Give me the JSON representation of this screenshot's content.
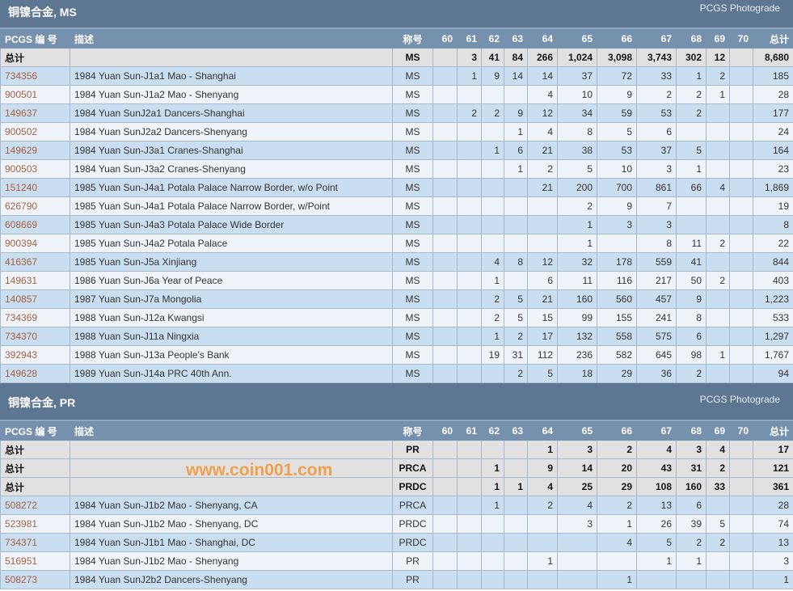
{
  "grades": [
    "60",
    "61",
    "62",
    "63",
    "64",
    "65",
    "66",
    "67",
    "68",
    "69",
    "70"
  ],
  "columns": {
    "pcgs": "PCGS 编 号",
    "desc": "描述",
    "designation": "称号",
    "total": "总计"
  },
  "sections": [
    {
      "title": "铜镍合金, MS",
      "brand": "PCGS Photograde",
      "totals": [
        {
          "label": "总计",
          "designation": "MS",
          "counts": [
            "",
            "3",
            "41",
            "84",
            "266",
            "1,024",
            "3,098",
            "3,743",
            "302",
            "12",
            ""
          ],
          "total": "8,680"
        }
      ],
      "rows": [
        {
          "id": "734356",
          "desc": "1984 Yuan Sun-J1a1 Mao - Shanghai",
          "designation": "MS",
          "counts": [
            "",
            "1",
            "9",
            "14",
            "14",
            "37",
            "72",
            "33",
            "1",
            "2",
            ""
          ],
          "total": "185"
        },
        {
          "id": "900501",
          "desc": "1984 Yuan Sun-J1a2 Mao - Shenyang",
          "designation": "MS",
          "counts": [
            "",
            "",
            "",
            "",
            "4",
            "10",
            "9",
            "2",
            "2",
            "1",
            ""
          ],
          "total": "28"
        },
        {
          "id": "149637",
          "desc": "1984 Yuan SunJ2a1 Dancers-Shanghai",
          "designation": "MS",
          "counts": [
            "",
            "2",
            "2",
            "9",
            "12",
            "34",
            "59",
            "53",
            "2",
            "",
            ""
          ],
          "total": "177"
        },
        {
          "id": "900502",
          "desc": "1984 Yuan SunJ2a2 Dancers-Shenyang",
          "designation": "MS",
          "counts": [
            "",
            "",
            "",
            "1",
            "4",
            "8",
            "5",
            "6",
            "",
            "",
            ""
          ],
          "total": "24"
        },
        {
          "id": "149629",
          "desc": "1984 Yuan Sun-J3a1 Cranes-Shanghai",
          "designation": "MS",
          "counts": [
            "",
            "",
            "1",
            "6",
            "21",
            "38",
            "53",
            "37",
            "5",
            "",
            ""
          ],
          "total": "164"
        },
        {
          "id": "900503",
          "desc": "1984 Yuan Sun-J3a2 Cranes-Shenyang",
          "designation": "MS",
          "counts": [
            "",
            "",
            "",
            "1",
            "2",
            "5",
            "10",
            "3",
            "1",
            "",
            ""
          ],
          "total": "23"
        },
        {
          "id": "151240",
          "desc": "1985 Yuan Sun-J4a1 Potala Palace Narrow Border, w/o Point",
          "designation": "MS",
          "counts": [
            "",
            "",
            "",
            "",
            "21",
            "200",
            "700",
            "861",
            "66",
            "4",
            ""
          ],
          "total": "1,869"
        },
        {
          "id": "626790",
          "desc": "1985 Yuan Sun-J4a1 Potala Palace Narrow Border, w/Point",
          "designation": "MS",
          "counts": [
            "",
            "",
            "",
            "",
            "",
            "2",
            "9",
            "7",
            "",
            "",
            ""
          ],
          "total": "19"
        },
        {
          "id": "608669",
          "desc": "1985 Yuan Sun-J4a3 Potala Palace Wide Border",
          "designation": "MS",
          "counts": [
            "",
            "",
            "",
            "",
            "",
            "1",
            "3",
            "3",
            "",
            "",
            ""
          ],
          "total": "8"
        },
        {
          "id": "900394",
          "desc": "1985 Yuan Sun-J4a2 Potala Palace",
          "designation": "MS",
          "counts": [
            "",
            "",
            "",
            "",
            "",
            "1",
            "",
            "8",
            "11",
            "2",
            ""
          ],
          "total": "22"
        },
        {
          "id": "416367",
          "desc": "1985 Yuan Sun-J5a Xinjiang",
          "designation": "MS",
          "counts": [
            "",
            "",
            "4",
            "8",
            "12",
            "32",
            "178",
            "559",
            "41",
            "",
            ""
          ],
          "total": "844"
        },
        {
          "id": "149631",
          "desc": "1986 Yuan Sun-J6a Year of Peace",
          "designation": "MS",
          "counts": [
            "",
            "",
            "1",
            "",
            "6",
            "11",
            "116",
            "217",
            "50",
            "2",
            ""
          ],
          "total": "403"
        },
        {
          "id": "140857",
          "desc": "1987 Yuan Sun-J7a Mongolia",
          "designation": "MS",
          "counts": [
            "",
            "",
            "2",
            "5",
            "21",
            "160",
            "560",
            "457",
            "9",
            "",
            ""
          ],
          "total": "1,223"
        },
        {
          "id": "734369",
          "desc": "1988 Yuan Sun-J12a Kwangsi",
          "designation": "MS",
          "counts": [
            "",
            "",
            "2",
            "5",
            "15",
            "99",
            "155",
            "241",
            "8",
            "",
            ""
          ],
          "total": "533"
        },
        {
          "id": "734370",
          "desc": "1988 Yuan Sun-J11a Ningxia",
          "designation": "MS",
          "counts": [
            "",
            "",
            "1",
            "2",
            "17",
            "132",
            "558",
            "575",
            "6",
            "",
            ""
          ],
          "total": "1,297"
        },
        {
          "id": "392943",
          "desc": "1988 Yuan Sun-J13a People's Bank",
          "designation": "MS",
          "counts": [
            "",
            "",
            "19",
            "31",
            "112",
            "236",
            "582",
            "645",
            "98",
            "1",
            ""
          ],
          "total": "1,767"
        },
        {
          "id": "149628",
          "desc": "1989 Yuan Sun-J14a PRC 40th Ann.",
          "designation": "MS",
          "counts": [
            "",
            "",
            "",
            "2",
            "5",
            "18",
            "29",
            "36",
            "2",
            "",
            ""
          ],
          "total": "94"
        }
      ]
    },
    {
      "title": "铜镍合金, PR",
      "brand": "PCGS Photograde",
      "totals": [
        {
          "label": "总计",
          "designation": "PR",
          "counts": [
            "",
            "",
            "",
            "",
            "1",
            "3",
            "2",
            "4",
            "3",
            "4",
            ""
          ],
          "total": "17"
        },
        {
          "label": "总计",
          "designation": "PRCA",
          "counts": [
            "",
            "",
            "1",
            "",
            "9",
            "14",
            "20",
            "43",
            "31",
            "2",
            ""
          ],
          "total": "121"
        },
        {
          "label": "总计",
          "designation": "PRDC",
          "counts": [
            "",
            "",
            "1",
            "1",
            "4",
            "25",
            "29",
            "108",
            "160",
            "33",
            ""
          ],
          "total": "361"
        }
      ],
      "rows": [
        {
          "id": "508272",
          "desc": "1984 Yuan Sun-J1b2 Mao - Shenyang, CA",
          "designation": "PRCA",
          "counts": [
            "",
            "",
            "1",
            "",
            "2",
            "4",
            "2",
            "13",
            "6",
            "",
            ""
          ],
          "total": "28"
        },
        {
          "id": "523981",
          "desc": "1984 Yuan Sun-J1b2 Mao - Shenyang, DC",
          "designation": "PRDC",
          "counts": [
            "",
            "",
            "",
            "",
            "",
            "3",
            "1",
            "26",
            "39",
            "5",
            ""
          ],
          "total": "74"
        },
        {
          "id": "734371",
          "desc": "1984 Yuan Sun-J1b1 Mao - Shanghai, DC",
          "designation": "PRDC",
          "counts": [
            "",
            "",
            "",
            "",
            "",
            "",
            "4",
            "5",
            "2",
            "2",
            ""
          ],
          "total": "13"
        },
        {
          "id": "516951",
          "desc": "1984 Yuan Sun-J1b2 Mao - Shenyang",
          "designation": "PR",
          "counts": [
            "",
            "",
            "",
            "",
            "1",
            "",
            "",
            "1",
            "1",
            "",
            ""
          ],
          "total": "3"
        },
        {
          "id": "508273",
          "desc": "1984 Yuan SunJ2b2 Dancers-Shenyang",
          "designation": "PR",
          "counts": [
            "",
            "",
            "",
            "",
            "",
            "",
            "1",
            "",
            "",
            "",
            ""
          ],
          "total": "1"
        }
      ]
    }
  ],
  "watermark": "www.coin001.com"
}
